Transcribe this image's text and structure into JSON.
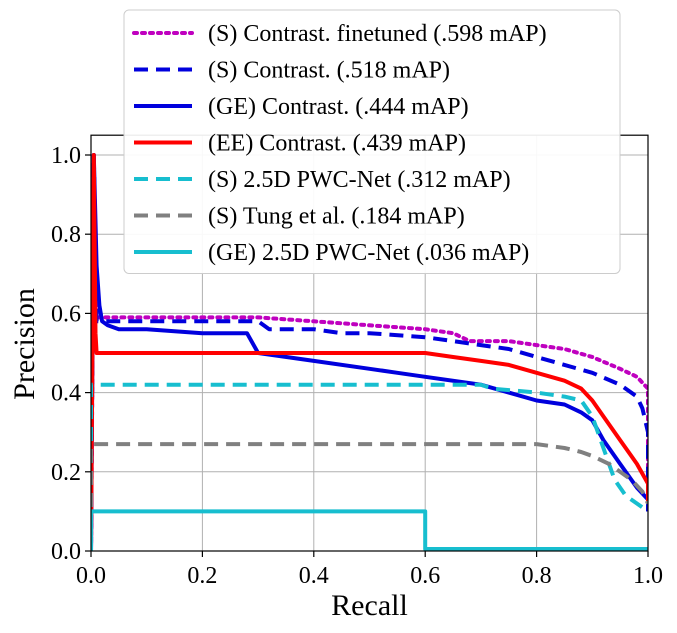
{
  "chart_data": {
    "type": "line",
    "xlabel": "Recall",
    "ylabel": "Precision",
    "xlim": [
      0.0,
      1.0
    ],
    "ylim": [
      0.0,
      1.05
    ],
    "xticks": [
      "0.0",
      "0.2",
      "0.4",
      "0.6",
      "0.8",
      "1.0"
    ],
    "yticks": [
      "0.0",
      "0.2",
      "0.4",
      "0.6",
      "0.8",
      "1.0"
    ],
    "grid": true,
    "legend_position": "top-center",
    "series": [
      {
        "name": "(S) Contrast. finetuned (.598 mAP)",
        "color": "#bf00bf",
        "style": "dotted",
        "x": [
          0.0,
          0.005,
          0.01,
          0.01,
          0.05,
          0.1,
          0.2,
          0.3,
          0.4,
          0.5,
          0.6,
          0.65,
          0.68,
          0.7,
          0.75,
          0.8,
          0.85,
          0.9,
          0.95,
          0.98,
          1.0,
          1.0
        ],
        "y": [
          0.0,
          0.9,
          0.6,
          0.59,
          0.59,
          0.59,
          0.59,
          0.59,
          0.58,
          0.57,
          0.56,
          0.55,
          0.53,
          0.53,
          0.53,
          0.52,
          0.51,
          0.49,
          0.46,
          0.44,
          0.41,
          0.1
        ]
      },
      {
        "name": "(S) Contrast. (.518 mAP)",
        "color": "#0000dd",
        "style": "dashed",
        "x": [
          0.0,
          0.005,
          0.01,
          0.01,
          0.05,
          0.1,
          0.2,
          0.3,
          0.32,
          0.4,
          0.45,
          0.5,
          0.6,
          0.65,
          0.7,
          0.75,
          0.8,
          0.85,
          0.9,
          0.95,
          0.98,
          0.99,
          1.0,
          1.0
        ],
        "y": [
          0.0,
          1.0,
          0.6,
          0.58,
          0.58,
          0.58,
          0.58,
          0.58,
          0.56,
          0.56,
          0.55,
          0.55,
          0.54,
          0.53,
          0.52,
          0.51,
          0.49,
          0.47,
          0.45,
          0.42,
          0.39,
          0.36,
          0.3,
          0.1
        ]
      },
      {
        "name": "(GE) Contrast. (.444 mAP)",
        "color": "#0000dd",
        "style": "solid",
        "x": [
          0.0,
          0.005,
          0.01,
          0.015,
          0.02,
          0.03,
          0.05,
          0.1,
          0.2,
          0.28,
          0.3,
          0.4,
          0.5,
          0.55,
          0.6,
          0.7,
          0.75,
          0.8,
          0.85,
          0.88,
          0.9,
          0.92,
          0.95,
          0.98,
          1.0,
          1.0
        ],
        "y": [
          0.0,
          1.0,
          0.72,
          0.62,
          0.58,
          0.57,
          0.56,
          0.56,
          0.55,
          0.55,
          0.5,
          0.48,
          0.46,
          0.45,
          0.44,
          0.42,
          0.4,
          0.38,
          0.37,
          0.35,
          0.33,
          0.28,
          0.22,
          0.16,
          0.13,
          0.1
        ]
      },
      {
        "name": "(EE) Contrast. (.439 mAP)",
        "color": "#ff0000",
        "style": "solid",
        "x": [
          0.0,
          0.005,
          0.008,
          0.01,
          0.05,
          0.1,
          0.2,
          0.3,
          0.4,
          0.5,
          0.6,
          0.65,
          0.7,
          0.75,
          0.8,
          0.85,
          0.88,
          0.9,
          0.92,
          0.95,
          0.98,
          1.0,
          1.0
        ],
        "y": [
          0.0,
          1.0,
          0.55,
          0.5,
          0.5,
          0.5,
          0.5,
          0.5,
          0.5,
          0.5,
          0.5,
          0.49,
          0.48,
          0.47,
          0.45,
          0.43,
          0.41,
          0.38,
          0.34,
          0.28,
          0.22,
          0.17,
          0.12
        ]
      },
      {
        "name": "(S) 2.5D PWC-Net (.312 mAP)",
        "color": "#17becf",
        "style": "dashed",
        "x": [
          0.0,
          0.0,
          0.2,
          0.4,
          0.6,
          0.7,
          0.72,
          0.8,
          0.85,
          0.88,
          0.9,
          0.92,
          0.94,
          0.96,
          0.98,
          1.0
        ],
        "y": [
          0.0,
          0.42,
          0.42,
          0.42,
          0.42,
          0.42,
          0.41,
          0.4,
          0.39,
          0.38,
          0.34,
          0.26,
          0.18,
          0.14,
          0.12,
          0.1
        ]
      },
      {
        "name": "(S) Tung et al. (.184 mAP)",
        "color": "#808080",
        "style": "dashed",
        "x": [
          0.0,
          0.0,
          0.2,
          0.4,
          0.6,
          0.8,
          0.85,
          0.88,
          0.9,
          0.93,
          0.95,
          0.97,
          0.99,
          1.0
        ],
        "y": [
          0.0,
          0.27,
          0.27,
          0.27,
          0.27,
          0.27,
          0.26,
          0.25,
          0.24,
          0.22,
          0.2,
          0.18,
          0.15,
          0.12
        ]
      },
      {
        "name": "(GE) 2.5D PWC-Net (.036 mAP)",
        "color": "#17becf",
        "style": "solid",
        "x": [
          0.0,
          0.0,
          0.6,
          0.6,
          1.0
        ],
        "y": [
          0.0,
          0.1,
          0.1,
          0.005,
          0.005
        ]
      }
    ]
  }
}
